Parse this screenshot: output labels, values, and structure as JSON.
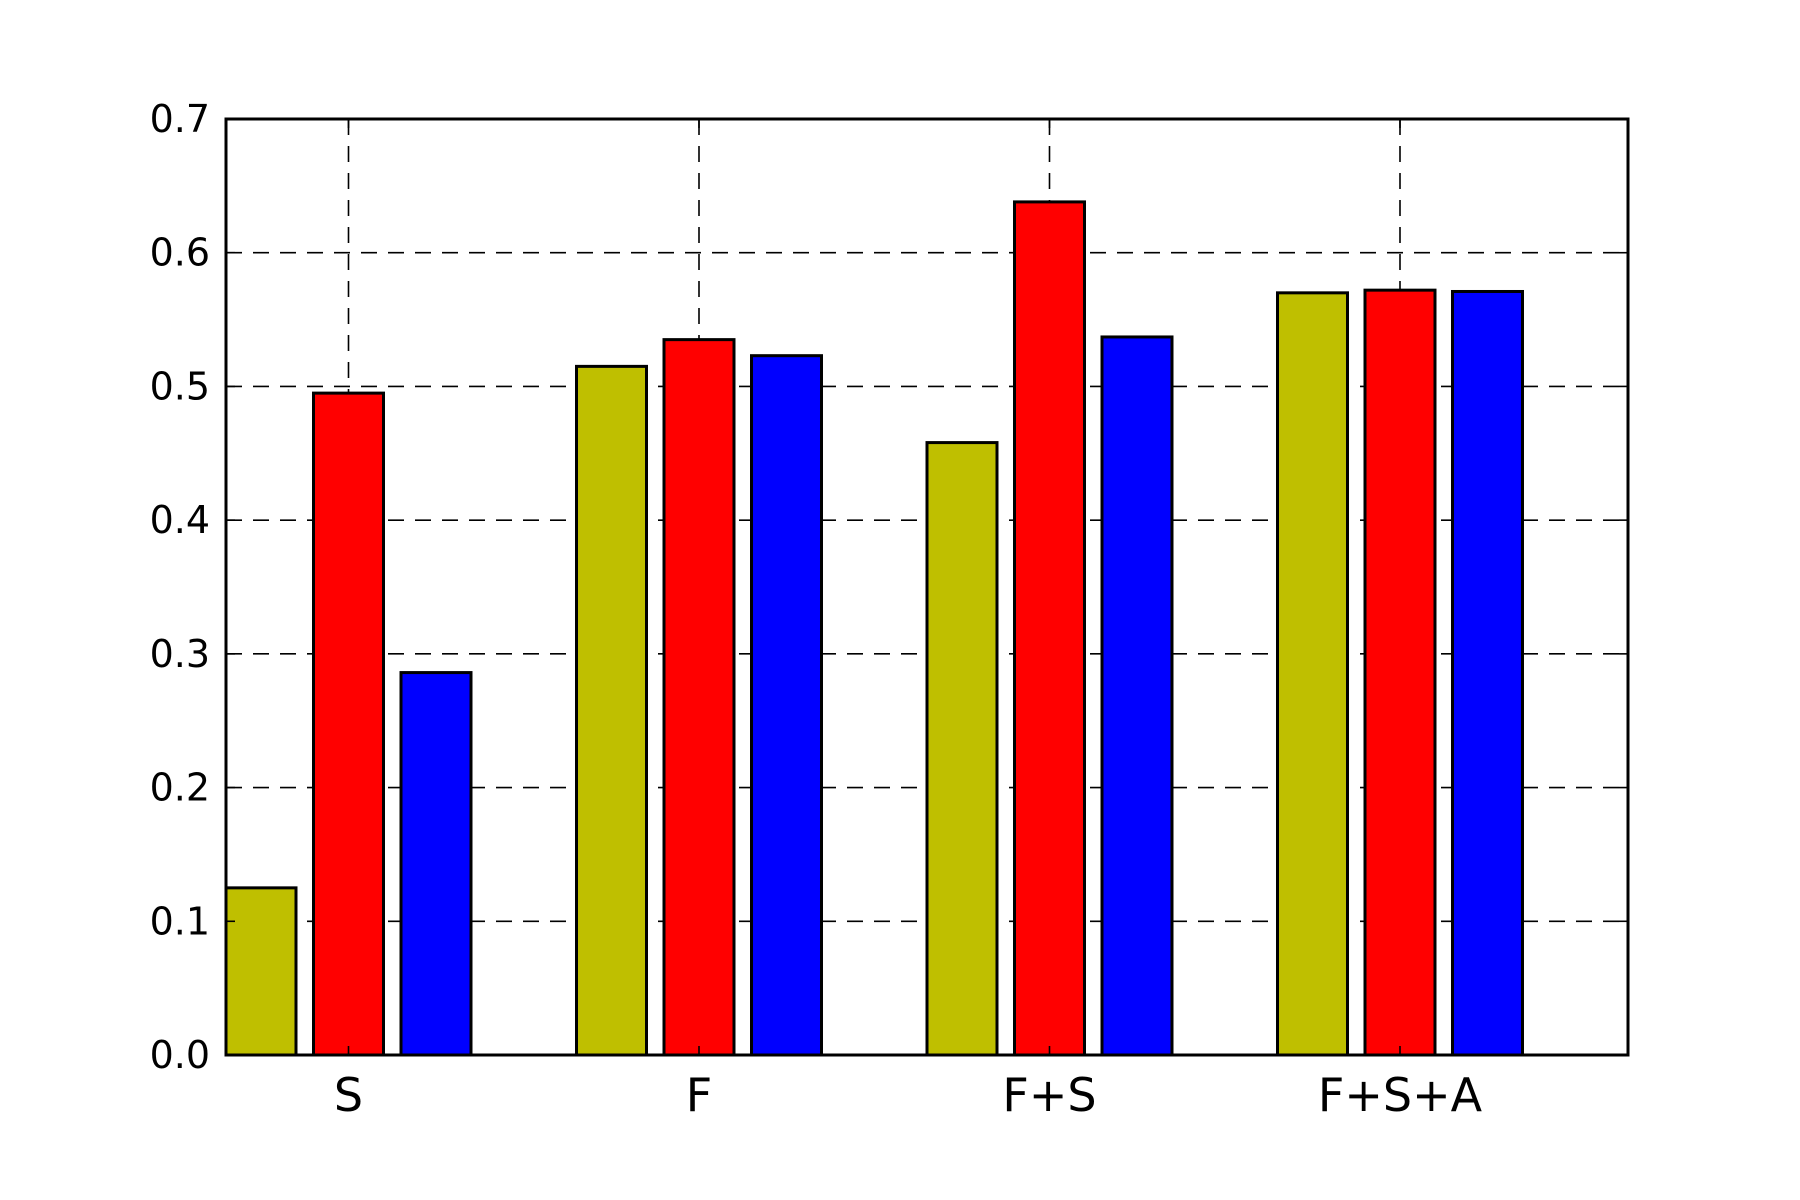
{
  "chart_data": {
    "type": "bar",
    "categories": [
      "S",
      "F",
      "F+S",
      "F+S+A"
    ],
    "series": [
      {
        "color": "#bfbf00",
        "values": [
          0.125,
          0.515,
          0.458,
          0.57
        ]
      },
      {
        "color": "#ff0000",
        "values": [
          0.495,
          0.535,
          0.638,
          0.572
        ]
      },
      {
        "color": "#0000ff",
        "values": [
          0.286,
          0.523,
          0.537,
          0.571
        ]
      }
    ],
    "yticks": [
      "0.0",
      "0.1",
      "0.2",
      "0.3",
      "0.4",
      "0.5",
      "0.6",
      "0.7"
    ],
    "ylim": [
      0,
      0.7
    ],
    "grid": true,
    "legend": false,
    "title": "",
    "xlabel": "",
    "ylabel": ""
  }
}
